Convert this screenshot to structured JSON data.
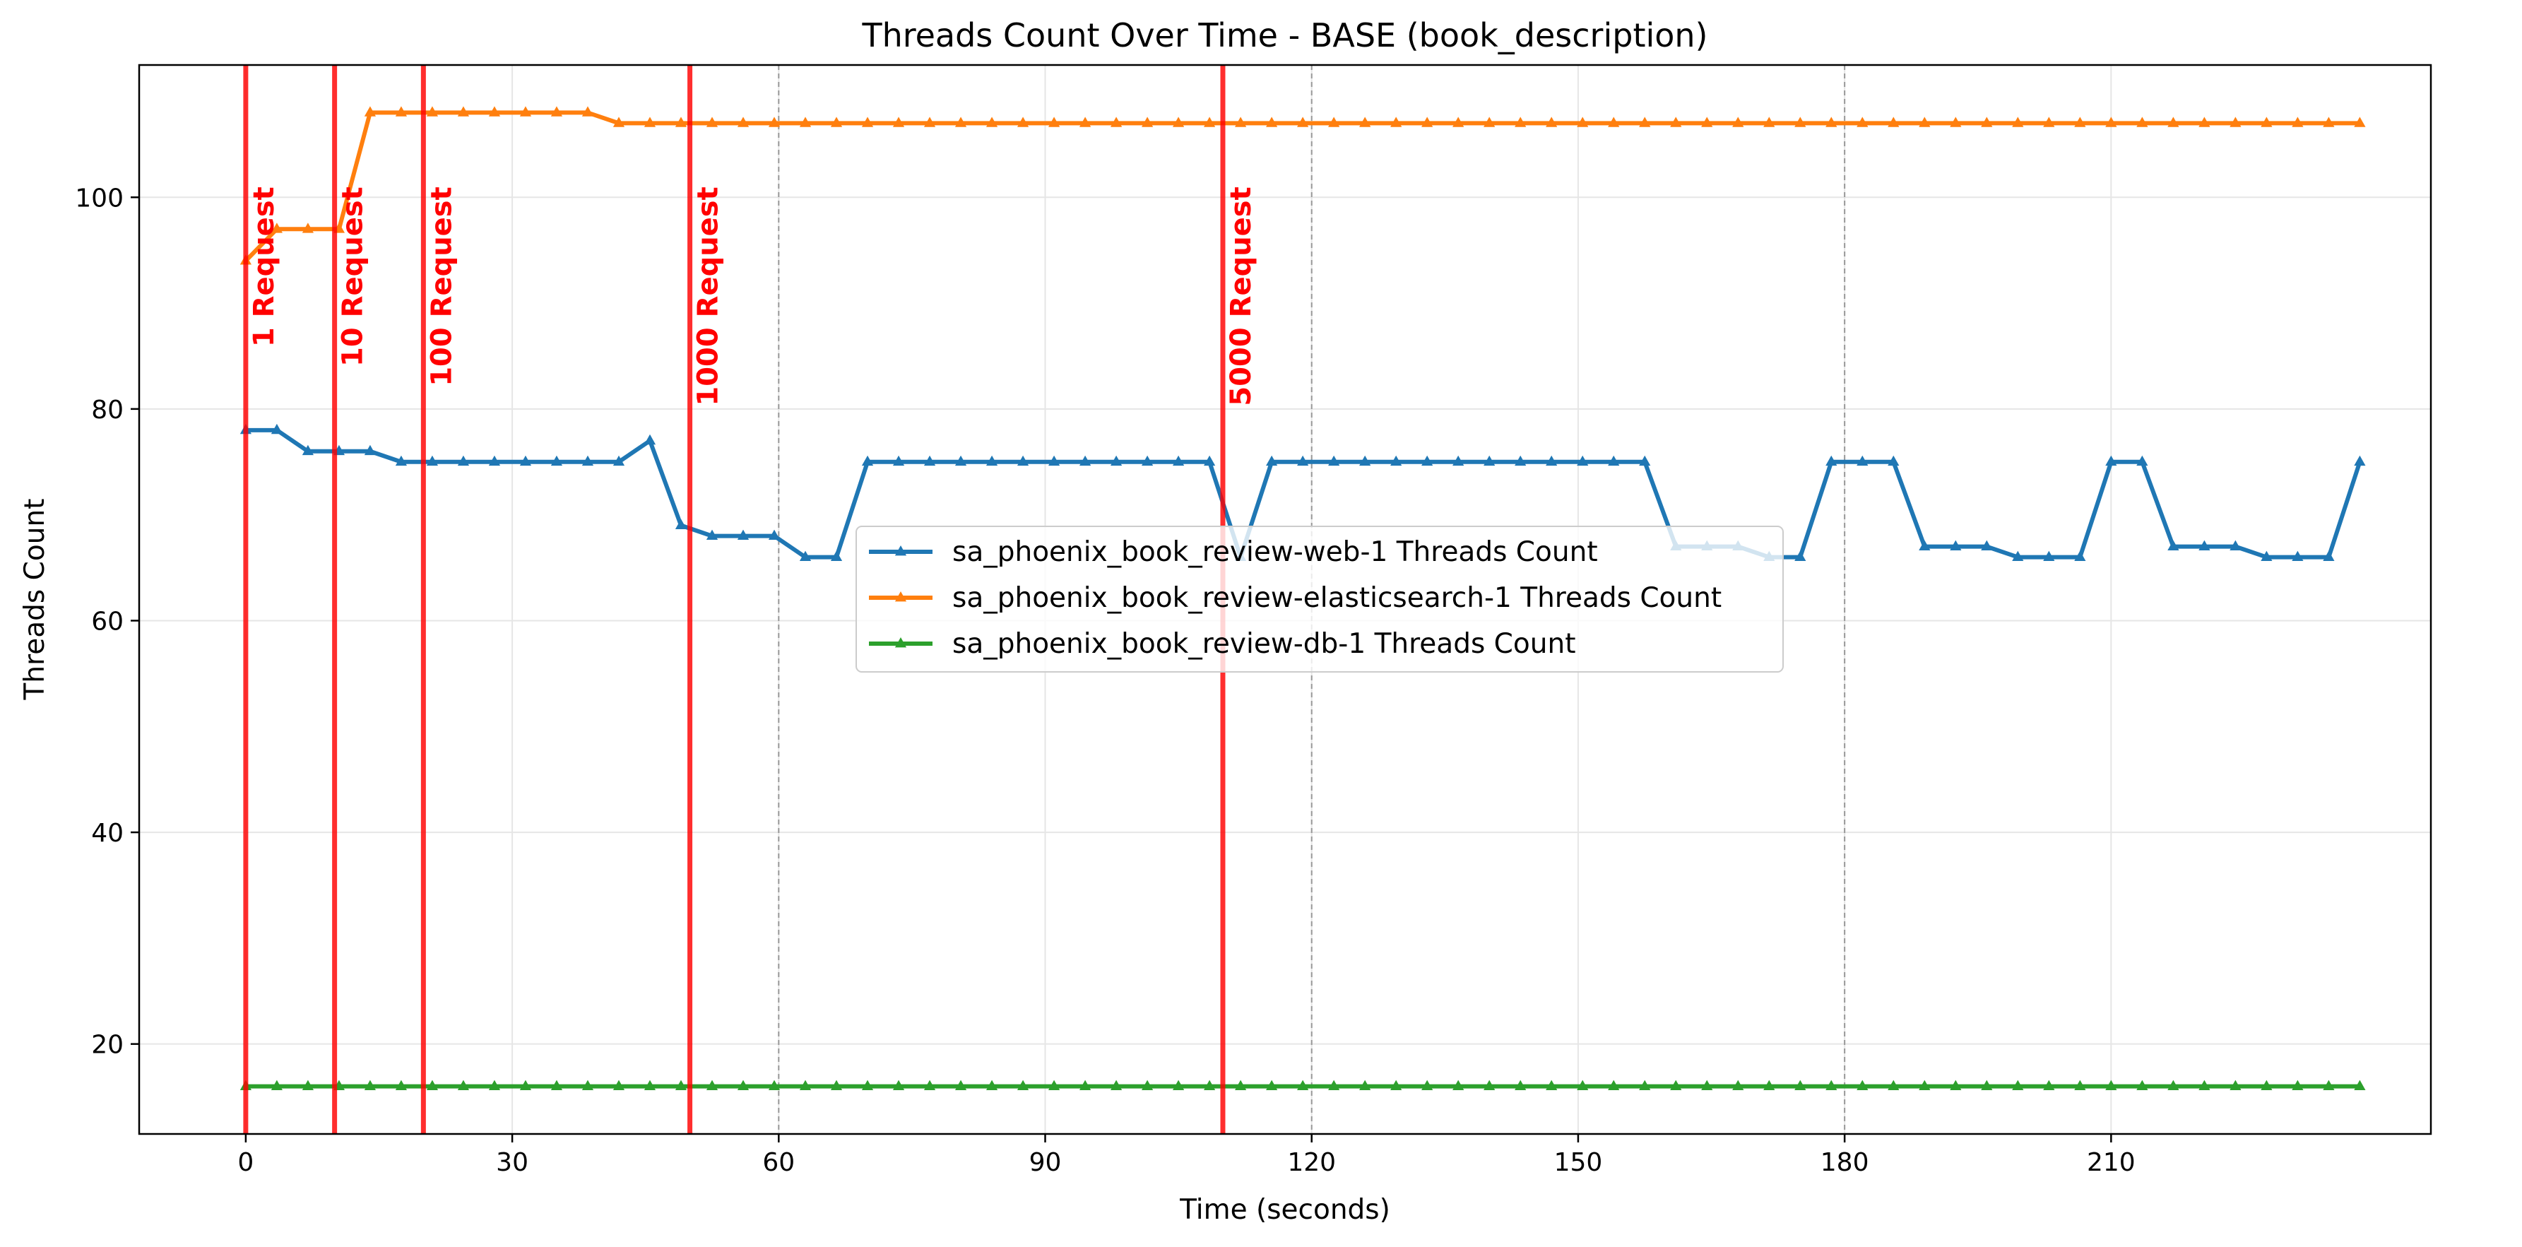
{
  "chart_data": {
    "type": "line",
    "title": "Threads Count Over Time - BASE (book_description)",
    "xlabel": "Time (seconds)",
    "ylabel": "Threads Count",
    "xlim": [
      -12,
      246
    ],
    "ylim": [
      11.5,
      112.5
    ],
    "xticks": [
      0,
      30,
      60,
      90,
      120,
      150,
      180,
      210
    ],
    "yticks": [
      20,
      40,
      60,
      80,
      100
    ],
    "grid": true,
    "legend_position": "center",
    "x": [
      0,
      3.5,
      7,
      10.5,
      14,
      17.5,
      21,
      24.5,
      28,
      31.5,
      35,
      38.5,
      42,
      45.5,
      49,
      52.5,
      56,
      59.5,
      63,
      66.5,
      70,
      73.5,
      77,
      80.5,
      84,
      87.5,
      91,
      94.5,
      98,
      101.5,
      105,
      108.5,
      112,
      115.5,
      119,
      122.5,
      126,
      129.5,
      133,
      136.5,
      140,
      143.5,
      147,
      150.5,
      154,
      157.5,
      161,
      164.5,
      168,
      171.5,
      175,
      178.5,
      182,
      185.5,
      189,
      192.5,
      196,
      199.5,
      203,
      206.5,
      210,
      213.5,
      217,
      220.5,
      224,
      227.5,
      231,
      234.5,
      238
    ],
    "series": [
      {
        "name": "sa_phoenix_book_review-web-1 Threads Count",
        "color": "#1f77b4",
        "values": [
          78,
          78,
          76,
          76,
          76,
          75,
          75,
          75,
          75,
          75,
          75,
          75,
          75,
          77,
          69,
          68,
          68,
          68,
          66,
          66,
          75,
          75,
          75,
          75,
          75,
          75,
          75,
          75,
          75,
          75,
          75,
          75,
          66,
          75,
          75,
          75,
          75,
          75,
          75,
          75,
          75,
          75,
          75,
          75,
          75,
          75,
          67,
          67,
          67,
          66,
          66,
          75,
          75,
          75,
          67,
          67,
          67,
          66,
          66,
          66,
          75,
          75,
          67,
          67,
          67,
          66,
          66,
          66,
          75
        ]
      },
      {
        "name": "sa_phoenix_book_review-elasticsearch-1 Threads Count",
        "color": "#ff7f0e",
        "values": [
          94,
          97,
          97,
          97,
          108,
          108,
          108,
          108,
          108,
          108,
          108,
          108,
          107,
          107,
          107,
          107,
          107,
          107,
          107,
          107,
          107,
          107,
          107,
          107,
          107,
          107,
          107,
          107,
          107,
          107,
          107,
          107,
          107,
          107,
          107,
          107,
          107,
          107,
          107,
          107,
          107,
          107,
          107,
          107,
          107,
          107,
          107,
          107,
          107,
          107,
          107,
          107,
          107,
          107,
          107,
          107,
          107,
          107,
          107,
          107,
          107,
          107,
          107,
          107,
          107,
          107,
          107,
          107,
          107
        ]
      },
      {
        "name": "sa_phoenix_book_review-db-1 Threads Count",
        "color": "#2ca02c",
        "values": [
          16,
          16,
          16,
          16,
          16,
          16,
          16,
          16,
          16,
          16,
          16,
          16,
          16,
          16,
          16,
          16,
          16,
          16,
          16,
          16,
          16,
          16,
          16,
          16,
          16,
          16,
          16,
          16,
          16,
          16,
          16,
          16,
          16,
          16,
          16,
          16,
          16,
          16,
          16,
          16,
          16,
          16,
          16,
          16,
          16,
          16,
          16,
          16,
          16,
          16,
          16,
          16,
          16,
          16,
          16,
          16,
          16,
          16,
          16,
          16,
          16,
          16,
          16,
          16,
          16,
          16,
          16,
          16,
          16
        ]
      }
    ],
    "request_markers": [
      {
        "x": 0,
        "label": "1 Request"
      },
      {
        "x": 10,
        "label": "10 Request"
      },
      {
        "x": 20,
        "label": "100 Request"
      },
      {
        "x": 50,
        "label": "1000 Request"
      },
      {
        "x": 110,
        "label": "5000 Request"
      }
    ],
    "marker_color": "#ff0000",
    "phase_lines_x": [
      60,
      120,
      180
    ]
  }
}
